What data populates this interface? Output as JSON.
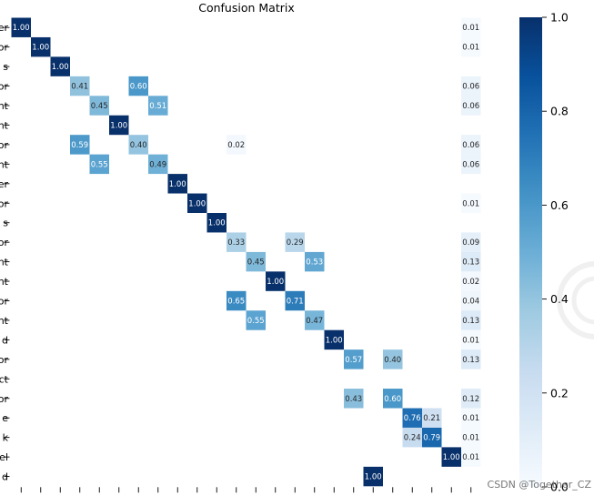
{
  "chart_data": {
    "type": "heatmap",
    "title": "Confusion Matrix",
    "n_cols": 24,
    "row_labels": [
      "er",
      "or",
      "s",
      "or",
      "nt",
      "nt",
      "or",
      "nt",
      "er",
      "or",
      "s",
      "or",
      "nt",
      "nt",
      "or",
      "nt",
      "d",
      "or",
      "ct",
      "or",
      "e",
      "k",
      "el",
      "d"
    ],
    "cells": [
      {
        "row": 0,
        "col": 0,
        "value": 1.0,
        "label": "1.00"
      },
      {
        "row": 0,
        "col": 23,
        "value": 0.01,
        "label": "0.01"
      },
      {
        "row": 1,
        "col": 1,
        "value": 1.0,
        "label": "1.00"
      },
      {
        "row": 1,
        "col": 23,
        "value": 0.01,
        "label": "0.01"
      },
      {
        "row": 2,
        "col": 2,
        "value": 1.0,
        "label": "1.00"
      },
      {
        "row": 3,
        "col": 3,
        "value": 0.41,
        "label": "0.41"
      },
      {
        "row": 3,
        "col": 6,
        "value": 0.6,
        "label": "0.60"
      },
      {
        "row": 3,
        "col": 23,
        "value": 0.06,
        "label": "0.06"
      },
      {
        "row": 4,
        "col": 4,
        "value": 0.45,
        "label": "0.45"
      },
      {
        "row": 4,
        "col": 7,
        "value": 0.51,
        "label": "0.51"
      },
      {
        "row": 4,
        "col": 23,
        "value": 0.06,
        "label": "0.06"
      },
      {
        "row": 5,
        "col": 5,
        "value": 1.0,
        "label": "1.00"
      },
      {
        "row": 6,
        "col": 3,
        "value": 0.59,
        "label": "0.59"
      },
      {
        "row": 6,
        "col": 6,
        "value": 0.4,
        "label": "0.40"
      },
      {
        "row": 6,
        "col": 11,
        "value": 0.02,
        "label": "0.02"
      },
      {
        "row": 6,
        "col": 23,
        "value": 0.06,
        "label": "0.06"
      },
      {
        "row": 7,
        "col": 4,
        "value": 0.55,
        "label": "0.55"
      },
      {
        "row": 7,
        "col": 7,
        "value": 0.49,
        "label": "0.49"
      },
      {
        "row": 7,
        "col": 23,
        "value": 0.06,
        "label": "0.06"
      },
      {
        "row": 8,
        "col": 8,
        "value": 1.0,
        "label": "1.00"
      },
      {
        "row": 9,
        "col": 9,
        "value": 1.0,
        "label": "1.00"
      },
      {
        "row": 9,
        "col": 23,
        "value": 0.01,
        "label": "0.01"
      },
      {
        "row": 10,
        "col": 10,
        "value": 1.0,
        "label": "1.00"
      },
      {
        "row": 11,
        "col": 11,
        "value": 0.33,
        "label": "0.33"
      },
      {
        "row": 11,
        "col": 14,
        "value": 0.29,
        "label": "0.29"
      },
      {
        "row": 11,
        "col": 23,
        "value": 0.09,
        "label": "0.09"
      },
      {
        "row": 12,
        "col": 12,
        "value": 0.45,
        "label": "0.45"
      },
      {
        "row": 12,
        "col": 15,
        "value": 0.53,
        "label": "0.53"
      },
      {
        "row": 12,
        "col": 23,
        "value": 0.13,
        "label": "0.13"
      },
      {
        "row": 13,
        "col": 13,
        "value": 1.0,
        "label": "1.00"
      },
      {
        "row": 13,
        "col": 23,
        "value": 0.02,
        "label": "0.02"
      },
      {
        "row": 14,
        "col": 11,
        "value": 0.65,
        "label": "0.65"
      },
      {
        "row": 14,
        "col": 14,
        "value": 0.71,
        "label": "0.71"
      },
      {
        "row": 14,
        "col": 23,
        "value": 0.04,
        "label": "0.04"
      },
      {
        "row": 15,
        "col": 12,
        "value": 0.55,
        "label": "0.55"
      },
      {
        "row": 15,
        "col": 15,
        "value": 0.47,
        "label": "0.47"
      },
      {
        "row": 15,
        "col": 23,
        "value": 0.13,
        "label": "0.13"
      },
      {
        "row": 16,
        "col": 16,
        "value": 1.0,
        "label": "1.00"
      },
      {
        "row": 16,
        "col": 23,
        "value": 0.01,
        "label": "0.01"
      },
      {
        "row": 17,
        "col": 17,
        "value": 0.57,
        "label": "0.57"
      },
      {
        "row": 17,
        "col": 19,
        "value": 0.4,
        "label": "0.40"
      },
      {
        "row": 17,
        "col": 23,
        "value": 0.13,
        "label": "0.13"
      },
      {
        "row": 19,
        "col": 17,
        "value": 0.43,
        "label": "0.43"
      },
      {
        "row": 19,
        "col": 19,
        "value": 0.6,
        "label": "0.60"
      },
      {
        "row": 19,
        "col": 23,
        "value": 0.12,
        "label": "0.12"
      },
      {
        "row": 20,
        "col": 20,
        "value": 0.76,
        "label": "0.76"
      },
      {
        "row": 20,
        "col": 21,
        "value": 0.21,
        "label": "0.21"
      },
      {
        "row": 20,
        "col": 23,
        "value": 0.01,
        "label": "0.01"
      },
      {
        "row": 21,
        "col": 20,
        "value": 0.24,
        "label": "0.24"
      },
      {
        "row": 21,
        "col": 21,
        "value": 0.79,
        "label": "0.79"
      },
      {
        "row": 21,
        "col": 23,
        "value": 0.01,
        "label": "0.01"
      },
      {
        "row": 22,
        "col": 22,
        "value": 1.0,
        "label": "1.00"
      },
      {
        "row": 22,
        "col": 23,
        "value": 0.01,
        "label": "0.01"
      },
      {
        "row": 23,
        "col": 18,
        "value": 1.0,
        "label": "1.00"
      }
    ],
    "colorbar": {
      "cmap": "Blues",
      "range": [
        0.0,
        1.0
      ],
      "ticks": [
        {
          "value": 0.0,
          "label": "0.0"
        },
        {
          "value": 0.2,
          "label": "0.2"
        },
        {
          "value": 0.4,
          "label": "0.4"
        },
        {
          "value": 0.6,
          "label": "0.6"
        },
        {
          "value": 0.8,
          "label": "0.8"
        },
        {
          "value": 1.0,
          "label": "1.0"
        }
      ]
    }
  },
  "watermark": {
    "text": "CSDN @Together_CZ"
  }
}
